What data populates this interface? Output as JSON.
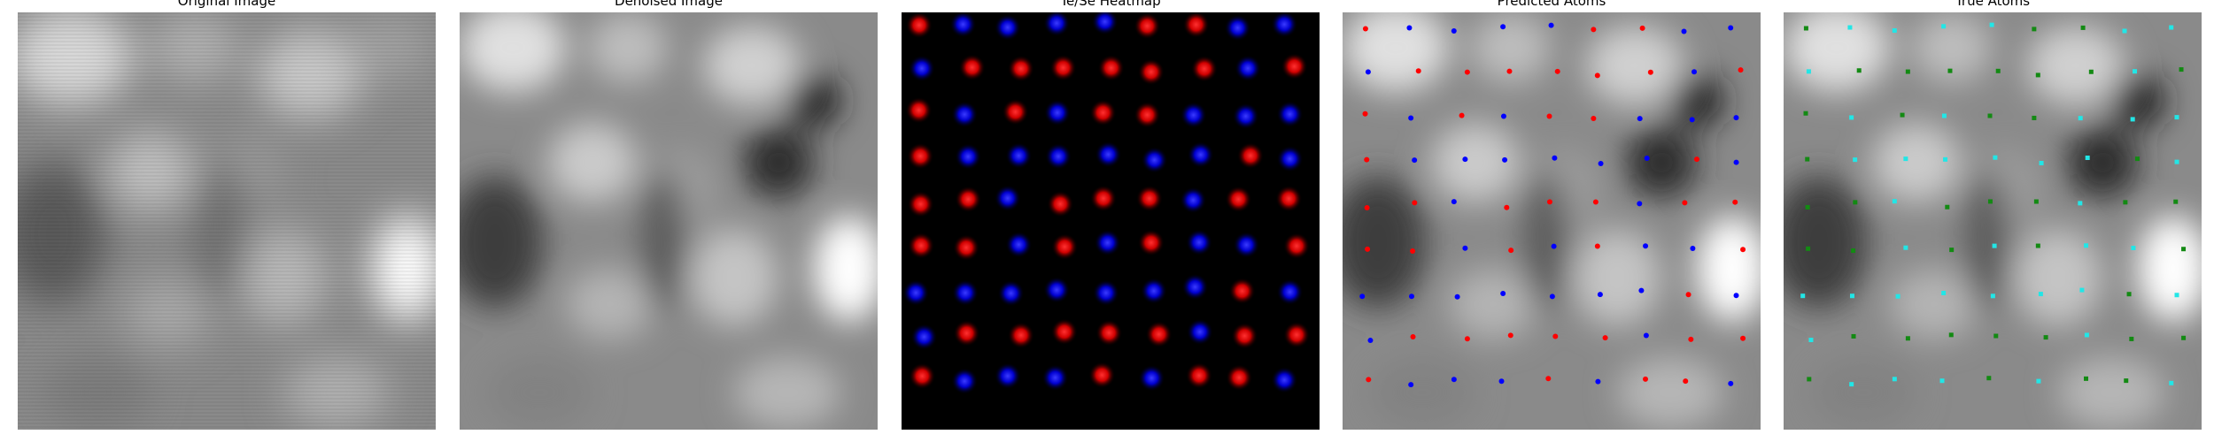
{
  "figure": {
    "panels": [
      {
        "id": "original",
        "title": "Original Image"
      },
      {
        "id": "denoised",
        "title": "Denoised Image"
      },
      {
        "id": "heatmap",
        "title": "Te/Se Heatmap"
      },
      {
        "id": "predicted",
        "title": "Predicted Atoms"
      },
      {
        "id": "true",
        "title": "True Atoms"
      }
    ]
  },
  "colors": {
    "te_red": "#ff1a1a",
    "se_blue": "#1a22ff",
    "pred_red": "#ff0000",
    "pred_blue": "#0000ff",
    "true_green": "#138a13",
    "true_cyan": "#22e6e6",
    "heatmap_bg": "#000000"
  }
}
